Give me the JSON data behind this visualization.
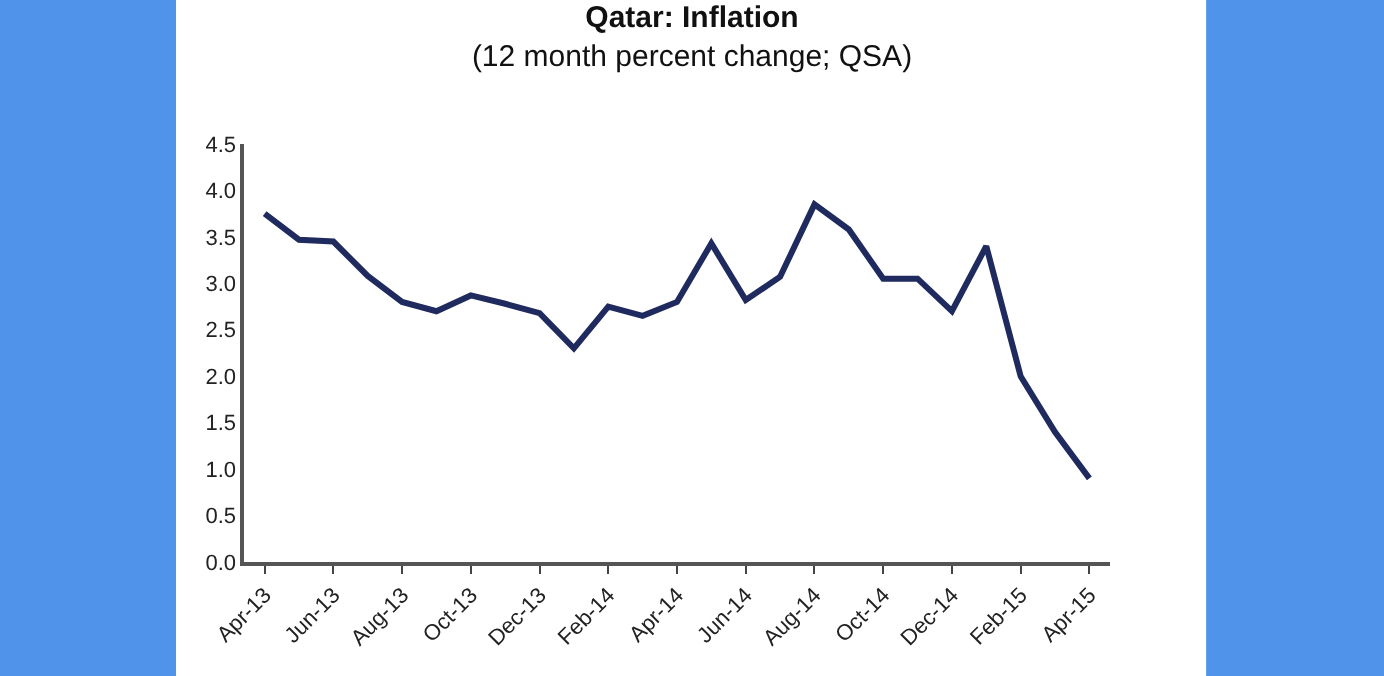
{
  "chart_data": {
    "type": "line",
    "title": "Qatar: Inflation",
    "subtitle": "(12 month percent change; QSA)",
    "categories": [
      "Apr-13",
      null,
      "Jun-13",
      null,
      "Aug-13",
      null,
      "Oct-13",
      null,
      "Dec-13",
      null,
      "Feb-14",
      null,
      "Apr-14",
      null,
      "Jun-14",
      null,
      "Aug-14",
      null,
      "Oct-14",
      null,
      "Dec-14",
      null,
      "Feb-15",
      null,
      "Apr-15"
    ],
    "series": [
      {
        "color": "#1f2a5e",
        "values": [
          3.75,
          3.47,
          3.45,
          3.08,
          2.8,
          2.7,
          2.87,
          2.78,
          2.68,
          2.3,
          2.75,
          2.65,
          2.8,
          3.43,
          2.82,
          3.07,
          3.85,
          3.58,
          3.05,
          3.05,
          2.7,
          3.4,
          2.0,
          1.4,
          0.9
        ]
      }
    ],
    "ylim": [
      0,
      4.5
    ],
    "yticks": [
      {
        "value": 0,
        "label": "0.0"
      },
      {
        "value": 0.5,
        "label": "0.5"
      },
      {
        "value": 1,
        "label": "1.0"
      },
      {
        "value": 1.5,
        "label": "1.5"
      },
      {
        "value": 2,
        "label": "2.0"
      },
      {
        "value": 2.5,
        "label": "2.5"
      },
      {
        "value": 3,
        "label": "3.0"
      },
      {
        "value": 3.5,
        "label": "3.5"
      },
      {
        "value": 4,
        "label": "4.0"
      },
      {
        "value": 4.5,
        "label": "4.5"
      }
    ],
    "grid": false,
    "legend": false,
    "marker": "none",
    "line_style": "solid"
  }
}
